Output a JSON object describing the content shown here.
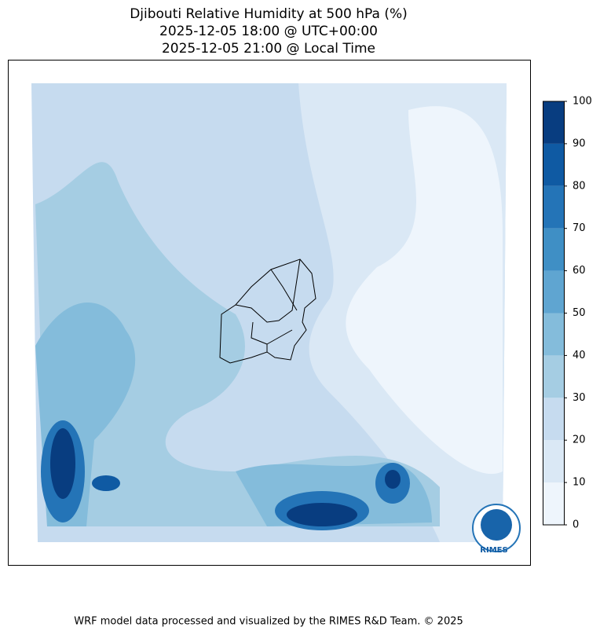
{
  "map": {
    "title_lines": [
      "Djibouti Relative Humidity at 500 hPa (%)",
      "2025-12-05 18:00 @ UTC+00:00",
      "2025-12-05 21:00 @ Local Time"
    ],
    "colorbar": {
      "ticks": [
        0,
        10,
        20,
        30,
        40,
        50,
        60,
        70,
        80,
        90,
        100
      ],
      "colors": [
        "#eef5fc",
        "#dae8f5",
        "#c6dbef",
        "#a5cde3",
        "#84bcdb",
        "#5fa5d1",
        "#3f8fc5",
        "#2474b7",
        "#0f5aa3",
        "#083d80"
      ]
    },
    "logo_text": "RIMES",
    "footer": "WRF model data processed and visualized by the RIMES R&D Team. © 2025"
  }
}
